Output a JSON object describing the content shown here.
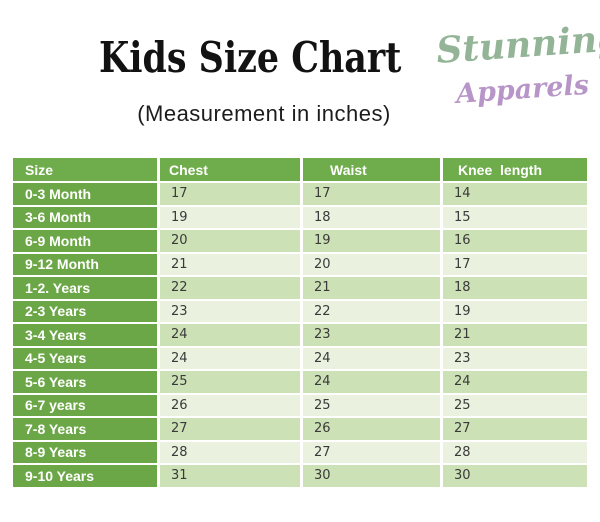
{
  "header": {
    "title": "Kids Size Chart",
    "subtitle": "(Measurement in inches)",
    "brand": {
      "line1": "Stunning",
      "line2": "Apparels"
    }
  },
  "table": {
    "columns": [
      "Size",
      "Chest",
      "Waist",
      "Knee  length"
    ],
    "rows": [
      [
        "0-3 Month",
        "17",
        "17",
        "14"
      ],
      [
        "3-6 Month",
        "19",
        "18",
        "15"
      ],
      [
        "6-9 Month",
        "20",
        "19",
        "16"
      ],
      [
        "9-12 Month",
        "21",
        "20",
        "17"
      ],
      [
        "1-2. Years",
        "22",
        "21",
        "18"
      ],
      [
        "2-3 Years",
        "23",
        "22",
        "19"
      ],
      [
        "3-4 Years",
        "24",
        "23",
        "21"
      ],
      [
        "4-5 Years",
        "24",
        "24",
        "23"
      ],
      [
        "5-6 Years",
        "25",
        "24",
        "24"
      ],
      [
        "6-7 years",
        "26",
        "25",
        "25"
      ],
      [
        "7-8 Years",
        "27",
        "26",
        "27"
      ],
      [
        "8-9 Years",
        "28",
        "27",
        "28"
      ],
      [
        "9-10 Years",
        "31",
        "30",
        "30"
      ]
    ]
  },
  "colors": {
    "header_green": "#6fac4b",
    "size_column_green": "#6ca747",
    "row_green_dark": "#cde1b6",
    "row_green_light": "#eaf2df",
    "brand_green": "#93b496",
    "brand_purple": "#b795c8",
    "value_text": "#3a3a3a"
  }
}
